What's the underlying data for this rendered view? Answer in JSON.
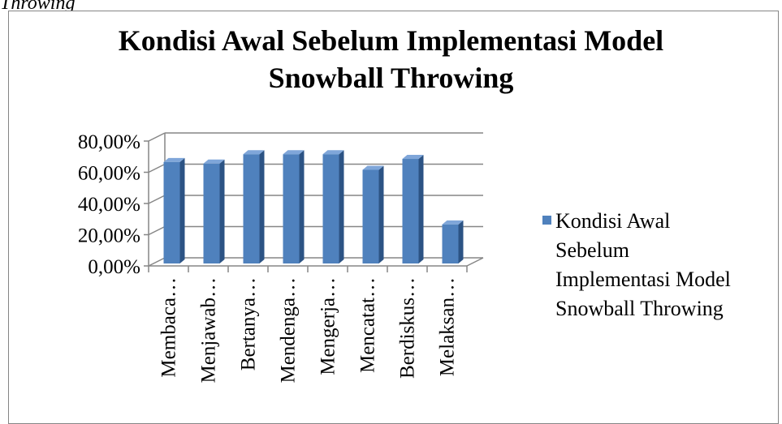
{
  "caption_fragment": "Throwing",
  "colors": {
    "bar_front": "#4F81BD",
    "bar_side": "#2C5384",
    "bar_top": "#7FA6D9",
    "gridline": "#868686",
    "frame": "#858585"
  },
  "chart_data": {
    "type": "bar",
    "title_lines": [
      "Kondisi Awal Sebelum Implementasi Model",
      "Snowball Throwing"
    ],
    "categories": [
      "Membaca…",
      "Menjawab…",
      "Bertanya…",
      "Mendenga…",
      "Mengerja…",
      "Mencatat…",
      "Berdiskus…",
      "Melaksan…"
    ],
    "series": [
      {
        "name": "Kondisi Awal Sebelum Implementasi Model Snowball Throwing",
        "values": [
          0.65,
          0.64,
          0.7,
          0.7,
          0.7,
          0.6,
          0.67,
          0.25
        ]
      }
    ],
    "y_ticks": [
      "0,00%",
      "20,00%",
      "40,00%",
      "60,00%",
      "80,00%"
    ],
    "ylim": [
      0,
      0.8
    ],
    "grid": true,
    "three_d": true,
    "legend_position": "right"
  },
  "legend": {
    "lines": [
      "Kondisi Awal",
      "Sebelum",
      "Implementasi Model",
      "Snowball Throwing"
    ]
  }
}
